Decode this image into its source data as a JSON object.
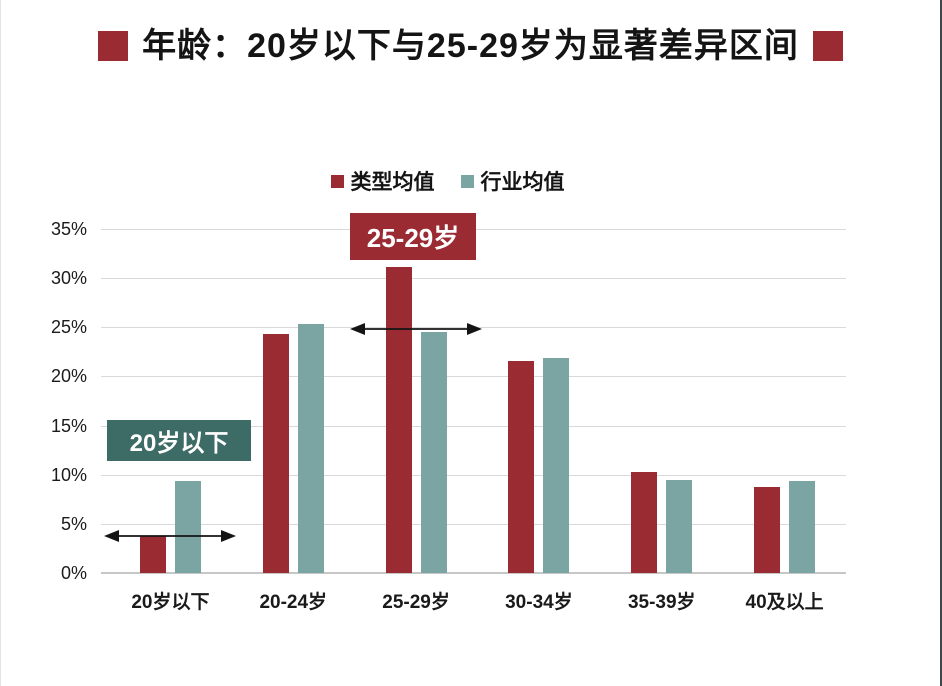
{
  "header": {
    "title": "年龄：20岁以下与25-29岁为显著差异区间",
    "accent_color": "#9a2b33"
  },
  "chart_data": {
    "type": "bar",
    "title": "年龄：20岁以下与25-29岁为显著差异区间",
    "categories": [
      "20岁以下",
      "20-24岁",
      "25-29岁",
      "30-34岁",
      "35-39岁",
      "40及以上"
    ],
    "series": [
      {
        "name": "类型均值",
        "color": "#9a2b33",
        "values": [
          3.8,
          24.3,
          31.1,
          21.6,
          10.3,
          8.8
        ]
      },
      {
        "name": "行业均值",
        "color": "#7aa5a2",
        "values": [
          9.4,
          25.3,
          24.5,
          21.9,
          9.5,
          9.4
        ]
      }
    ],
    "xlabel": "",
    "ylabel": "",
    "ylim": [
      0,
      35
    ],
    "ytick_step": 5,
    "ytick_format": "percent",
    "grid": "horizontal",
    "gridline_color": "#d9d9d9",
    "legend_position": "top-center",
    "annotations": [
      {
        "type": "box",
        "label": "20岁以下",
        "bg_color": "#3d6b66",
        "text_color": "#ffffff",
        "category_index": 0
      },
      {
        "type": "box",
        "label": "25-29岁",
        "bg_color": "#9a2b33",
        "text_color": "#ffffff",
        "category_index": 2
      },
      {
        "type": "double-arrow",
        "category_index": 0,
        "y_value": 3.8,
        "color": "#141414"
      },
      {
        "type": "double-arrow",
        "category_index": 2,
        "y_value": 24.8,
        "color": "#141414"
      }
    ]
  }
}
